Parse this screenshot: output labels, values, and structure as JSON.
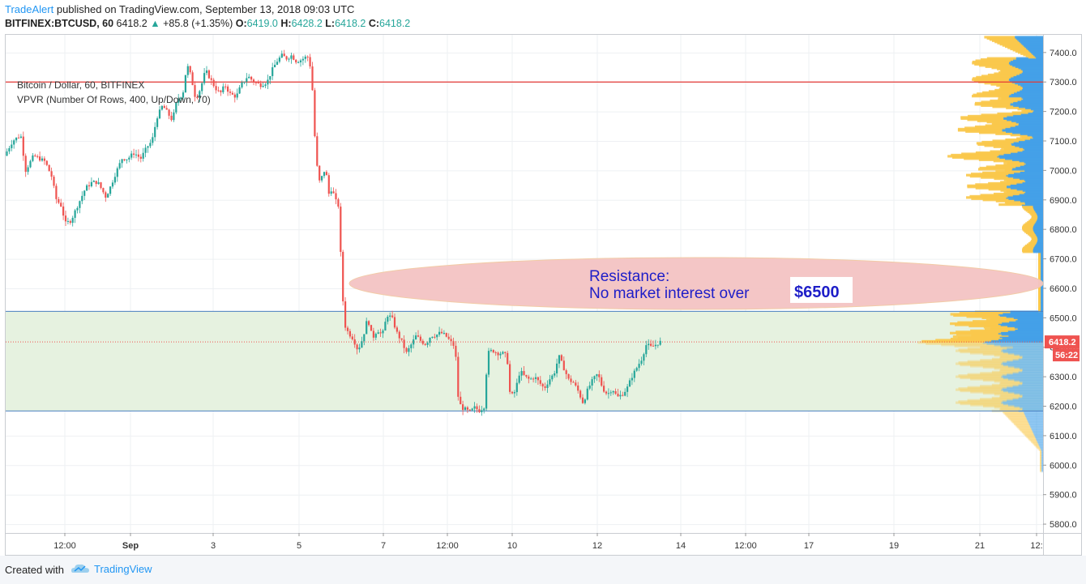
{
  "header": {
    "author": "TradeAlert",
    "published": "published on TradingView.com, September 13, 2018 09:03 UTC",
    "symbol": "BITFINEX:BTCUSD, 60",
    "last": "6418.2",
    "change_arrow": "▲",
    "change": "+85.8 (+1.35%)",
    "o_label": "O:",
    "o": "6419.0",
    "h_label": "H:",
    "h": "6428.2",
    "l_label": "L:",
    "l": "6418.2",
    "c_label": "C:",
    "c": "6418.2"
  },
  "legend": {
    "title": "Bitcoin / Dollar, 60, BITFINEX",
    "indicator": "VPVR (Number Of Rows, 400, Up/Down, 70)"
  },
  "annotation": {
    "line1": "Resistance:",
    "line2": "No market interest over",
    "price_tag": "$6500"
  },
  "price_label": "6418.2",
  "countdown_label": "56:22",
  "footer": {
    "created": "Created with",
    "brand": "TradingView"
  },
  "colors": {
    "up": "#26a69a",
    "down": "#ef5350",
    "resistance_line": "#e53935",
    "range_line": "#4a7fc1",
    "range_fill": "#e6f2e0",
    "ellipse_fill": "#f4c4c4",
    "vp_up": "#42a0e8",
    "vp_down": "#f9c84a",
    "text_accent": "#1e1ec8"
  },
  "chart_data": {
    "type": "candlestick",
    "symbol": "BTCUSD",
    "ylim": [
      5770,
      7460
    ],
    "y_ticks": [
      7400,
      7300,
      7200,
      7100,
      7000,
      6900,
      6800,
      6700,
      6600,
      6500,
      6400,
      6300,
      6200,
      6100,
      6000,
      5900,
      5800
    ],
    "x_ticks": [
      "12:00",
      "Sep",
      "3",
      "5",
      "7",
      "12:00",
      "10",
      "12",
      "14",
      "12:00",
      "17",
      "19",
      "21",
      "12:"
    ],
    "horizontal_lines": [
      {
        "price": 7300,
        "kind": "resistance"
      },
      {
        "price": 6522,
        "kind": "range-top"
      },
      {
        "price": 6184,
        "kind": "range-bottom"
      },
      {
        "price": 6418.2,
        "kind": "last-price"
      }
    ],
    "range_zone": [
      6184,
      6522
    ],
    "price_path": [
      [
        0,
        7050
      ],
      [
        10,
        7100
      ],
      [
        20,
        7120
      ],
      [
        26,
        7000
      ],
      [
        36,
        7050
      ],
      [
        50,
        7030
      ],
      [
        58,
        6980
      ],
      [
        64,
        6900
      ],
      [
        70,
        6880
      ],
      [
        75,
        6820
      ],
      [
        82,
        6830
      ],
      [
        90,
        6880
      ],
      [
        100,
        6940
      ],
      [
        108,
        6960
      ],
      [
        115,
        6960
      ],
      [
        125,
        6910
      ],
      [
        130,
        6940
      ],
      [
        137,
        6990
      ],
      [
        145,
        7040
      ],
      [
        152,
        7040
      ],
      [
        160,
        7060
      ],
      [
        168,
        7040
      ],
      [
        176,
        7080
      ],
      [
        182,
        7100
      ],
      [
        188,
        7180
      ],
      [
        195,
        7220
      ],
      [
        200,
        7200
      ],
      [
        207,
        7170
      ],
      [
        213,
        7240
      ],
      [
        220,
        7260
      ],
      [
        225,
        7360
      ],
      [
        230,
        7320
      ],
      [
        236,
        7240
      ],
      [
        242,
        7280
      ],
      [
        248,
        7340
      ],
      [
        254,
        7310
      ],
      [
        260,
        7280
      ],
      [
        266,
        7260
      ],
      [
        272,
        7290
      ],
      [
        278,
        7260
      ],
      [
        286,
        7250
      ],
      [
        292,
        7290
      ],
      [
        300,
        7320
      ],
      [
        308,
        7300
      ],
      [
        316,
        7290
      ],
      [
        324,
        7300
      ],
      [
        330,
        7340
      ],
      [
        336,
        7370
      ],
      [
        342,
        7390
      ],
      [
        348,
        7380
      ],
      [
        354,
        7390
      ],
      [
        360,
        7370
      ],
      [
        366,
        7375
      ],
      [
        372,
        7385
      ],
      [
        376,
        7385
      ],
      [
        380,
        7270
      ],
      [
        384,
        7050
      ],
      [
        388,
        6960
      ],
      [
        392,
        6980
      ],
      [
        396,
        7010
      ],
      [
        400,
        6920
      ],
      [
        404,
        6940
      ],
      [
        408,
        6900
      ],
      [
        412,
        6880
      ],
      [
        415,
        6700
      ],
      [
        419,
        6480
      ],
      [
        424,
        6450
      ],
      [
        430,
        6430
      ],
      [
        436,
        6390
      ],
      [
        442,
        6430
      ],
      [
        448,
        6500
      ],
      [
        454,
        6430
      ],
      [
        460,
        6460
      ],
      [
        466,
        6440
      ],
      [
        472,
        6510
      ],
      [
        478,
        6500
      ],
      [
        484,
        6450
      ],
      [
        490,
        6420
      ],
      [
        496,
        6380
      ],
      [
        502,
        6410
      ],
      [
        508,
        6440
      ],
      [
        514,
        6420
      ],
      [
        520,
        6410
      ],
      [
        526,
        6440
      ],
      [
        532,
        6440
      ],
      [
        538,
        6450
      ],
      [
        544,
        6440
      ],
      [
        550,
        6420
      ],
      [
        556,
        6400
      ],
      [
        560,
        6220
      ],
      [
        564,
        6195
      ],
      [
        568,
        6190
      ],
      [
        574,
        6180
      ],
      [
        580,
        6195
      ],
      [
        586,
        6185
      ],
      [
        592,
        6200
      ],
      [
        596,
        6380
      ],
      [
        602,
        6390
      ],
      [
        608,
        6380
      ],
      [
        614,
        6380
      ],
      [
        620,
        6370
      ],
      [
        624,
        6230
      ],
      [
        630,
        6250
      ],
      [
        636,
        6320
      ],
      [
        642,
        6300
      ],
      [
        648,
        6290
      ],
      [
        654,
        6300
      ],
      [
        660,
        6280
      ],
      [
        666,
        6260
      ],
      [
        672,
        6290
      ],
      [
        678,
        6310
      ],
      [
        684,
        6370
      ],
      [
        690,
        6330
      ],
      [
        696,
        6290
      ],
      [
        702,
        6280
      ],
      [
        708,
        6250
      ],
      [
        714,
        6210
      ],
      [
        720,
        6260
      ],
      [
        726,
        6290
      ],
      [
        732,
        6310
      ],
      [
        738,
        6260
      ],
      [
        744,
        6240
      ],
      [
        750,
        6260
      ],
      [
        756,
        6230
      ],
      [
        762,
        6240
      ],
      [
        768,
        6260
      ],
      [
        774,
        6300
      ],
      [
        780,
        6330
      ],
      [
        786,
        6360
      ],
      [
        792,
        6410
      ],
      [
        798,
        6400
      ],
      [
        804,
        6410
      ],
      [
        808,
        6418
      ]
    ]
  }
}
